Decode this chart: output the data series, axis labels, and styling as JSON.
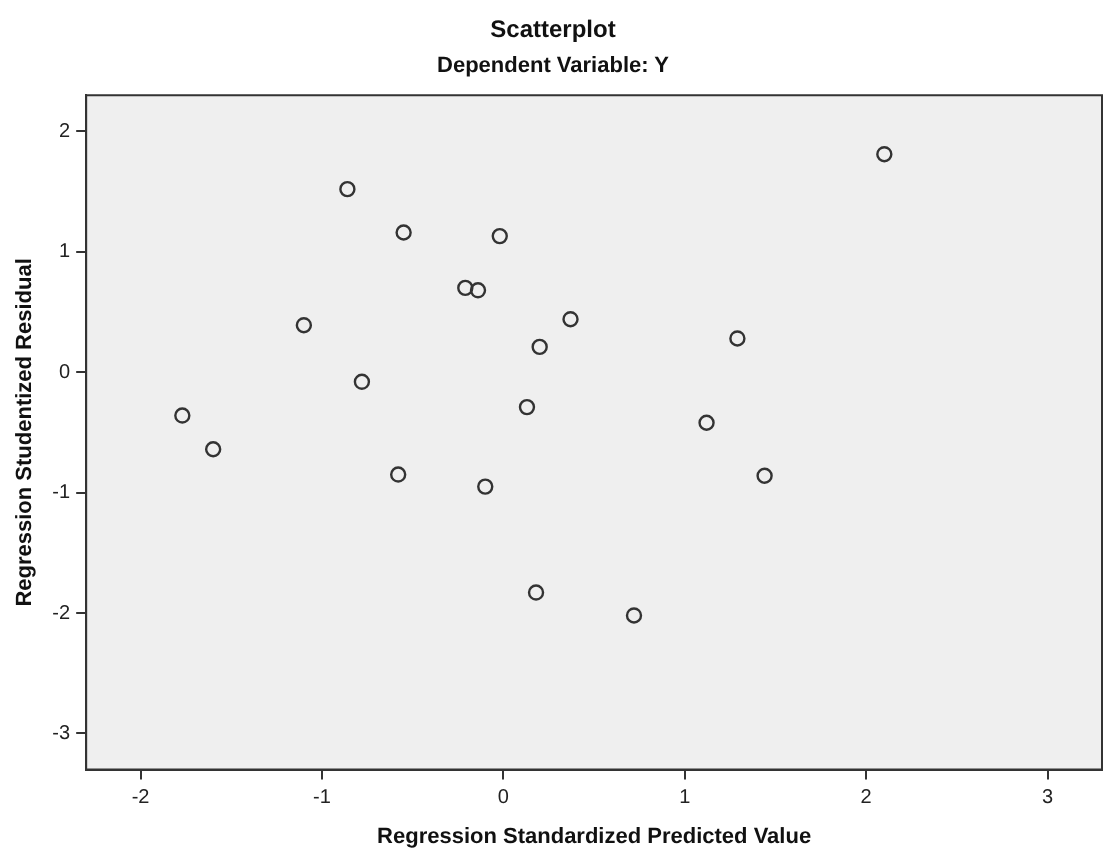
{
  "chart_data": {
    "type": "scatter",
    "title": "Scatterplot",
    "subtitle": "Dependent Variable: Y",
    "xlabel": "Regression Standardized Predicted Value",
    "ylabel": "Regression Studentized Residual",
    "x": [
      -1.77,
      -1.6,
      -1.1,
      -0.86,
      -0.78,
      -0.55,
      -0.58,
      -0.21,
      -0.14,
      -0.02,
      -0.1,
      0.13,
      0.2,
      0.37,
      0.18,
      0.72,
      1.12,
      1.29,
      1.44,
      2.1
    ],
    "series": [
      {
        "color": "#333333",
        "values": [
          -0.36,
          -0.64,
          0.39,
          1.52,
          -0.08,
          1.16,
          -0.85,
          0.7,
          0.68,
          1.13,
          -0.95,
          -0.29,
          0.21,
          0.44,
          -1.83,
          -2.02,
          -0.42,
          0.28,
          -0.86,
          1.81
        ]
      }
    ],
    "xlim": [
      -2.3,
      3.3
    ],
    "ylim": [
      -3.3,
      2.3
    ],
    "xticks": [
      -2,
      -1,
      0,
      1,
      2,
      3
    ],
    "yticks": [
      -3,
      -2,
      -1,
      0,
      1,
      2
    ],
    "grid": false,
    "legend": false,
    "marker": "circle"
  }
}
